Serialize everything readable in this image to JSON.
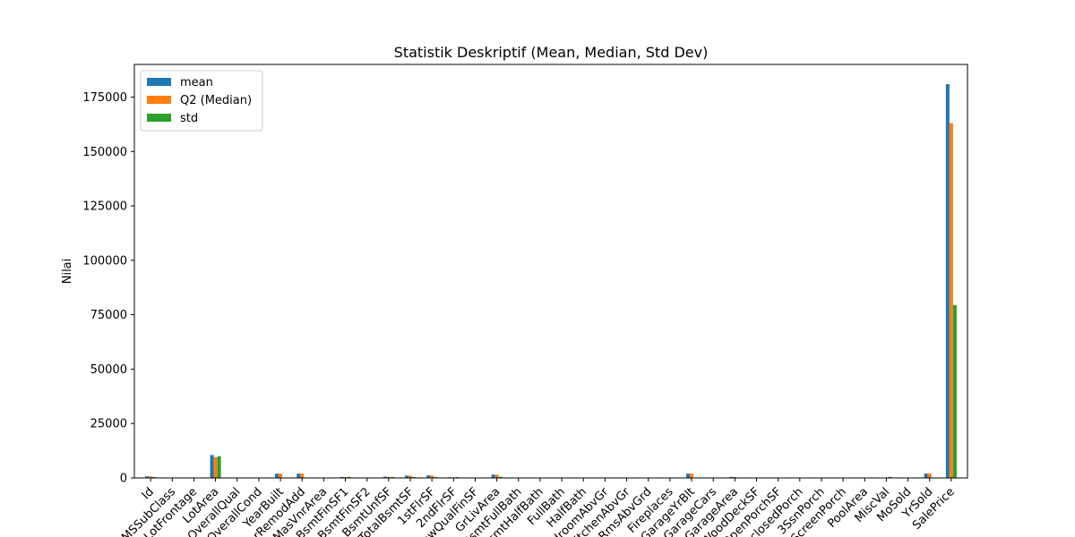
{
  "chart_data": {
    "type": "bar",
    "title": "Statistik Deskriptif (Mean, Median, Std Dev)",
    "xlabel": "",
    "ylabel": "Nilai",
    "ylim": [
      0,
      190000
    ],
    "yticks": [
      0,
      25000,
      50000,
      75000,
      100000,
      125000,
      150000,
      175000
    ],
    "grid": false,
    "legend_position": "top-left",
    "categories": [
      "Id",
      "MSSubClass",
      "LotFrontage",
      "LotArea",
      "OverallQual",
      "OverallCond",
      "YearBuilt",
      "YearRemodAdd",
      "MasVnrArea",
      "BsmtFinSF1",
      "BsmtFinSF2",
      "BsmtUnfSF",
      "TotalBsmtSF",
      "1stFlrSF",
      "2ndFlrSF",
      "LowQualFinSF",
      "GrLivArea",
      "BsmtFullBath",
      "BsmtHalfBath",
      "FullBath",
      "HalfBath",
      "BedroomAbvGr",
      "KitchenAbvGr",
      "TotRmsAbvGrd",
      "Fireplaces",
      "GarageYrBlt",
      "GarageCars",
      "GarageArea",
      "WoodDeckSF",
      "OpenPorchSF",
      "EnclosedPorch",
      "3SsnPorch",
      "ScreenPorch",
      "PoolArea",
      "MiscVal",
      "MoSold",
      "YrSold",
      "SalePrice"
    ],
    "series": [
      {
        "name": "mean",
        "color": "#1f77b4",
        "values": [
          730.5,
          56.9,
          70.0,
          10517,
          6.1,
          5.6,
          1971,
          1985,
          104,
          444,
          46.5,
          567,
          1057,
          1163,
          347,
          5.8,
          1515,
          0.4,
          0.06,
          1.6,
          0.4,
          2.9,
          1.0,
          6.5,
          0.6,
          1979,
          1.8,
          473,
          94,
          46.7,
          22,
          3.4,
          15,
          2.8,
          43,
          6.3,
          2008,
          180921
        ]
      },
      {
        "name": "Q2 (Median)",
        "color": "#ff7f0e",
        "values": [
          730.5,
          50,
          69,
          9478,
          6,
          5,
          1973,
          1994,
          0,
          384,
          0,
          478,
          992,
          1087,
          0,
          0,
          1464,
          0,
          0,
          2,
          0,
          3,
          1,
          6,
          1,
          1980,
          2,
          480,
          0,
          25,
          0,
          0,
          0,
          0,
          0,
          6,
          2008,
          163000
        ]
      },
      {
        "name": "std",
        "color": "#2ca02c",
        "values": [
          421.6,
          42.3,
          24.3,
          9981,
          1.4,
          1.1,
          30,
          21,
          181,
          456,
          161,
          442,
          439,
          386,
          437,
          48.6,
          525,
          0.5,
          0.24,
          0.55,
          0.5,
          0.8,
          0.2,
          1.6,
          0.6,
          25,
          0.75,
          214,
          125,
          66,
          61,
          29,
          56,
          40,
          496,
          2.7,
          1.3,
          79443
        ]
      }
    ]
  }
}
